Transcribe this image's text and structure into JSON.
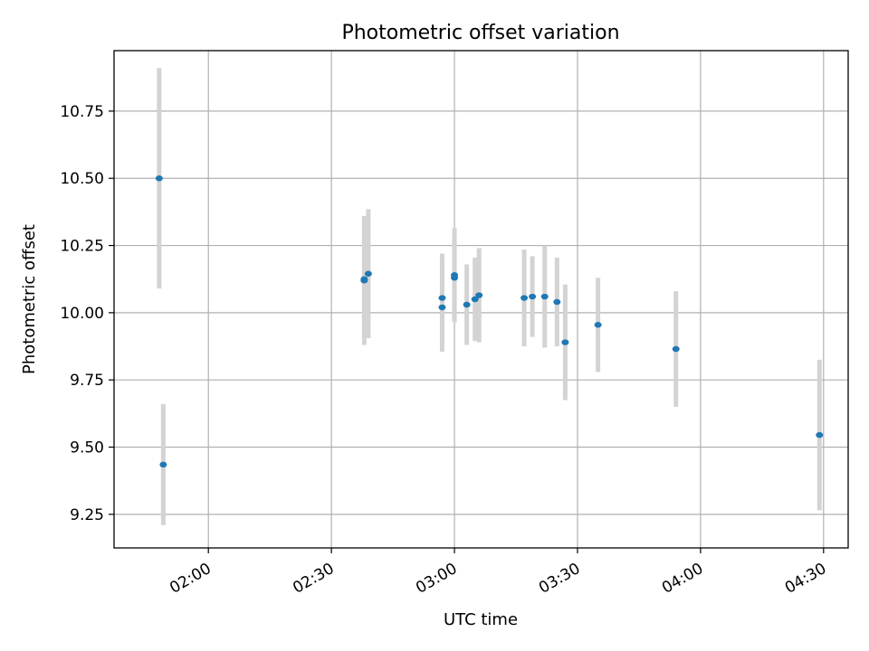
{
  "chart_data": {
    "type": "scatter",
    "title": "Photometric offset variation",
    "xlabel": "UTC time",
    "ylabel": "Photometric offset",
    "x_tick_labels": [
      "02:00",
      "02:30",
      "03:00",
      "03:30",
      "04:00",
      "04:30"
    ],
    "y_tick_labels": [
      "9.25",
      "9.50",
      "9.75",
      "10.00",
      "10.25",
      "10.50",
      "10.75"
    ],
    "xlim": [
      "01:37",
      "04:36"
    ],
    "ylim": [
      9.125,
      10.975
    ],
    "grid": true,
    "legend": "none",
    "point_color": "#1f77b4",
    "errorbar_color": "#d3d3d3",
    "points": [
      {
        "x": "01:48",
        "y": 10.5,
        "yerr": 0.41
      },
      {
        "x": "01:49",
        "y": 9.435,
        "yerr": 0.225
      },
      {
        "x": "02:38",
        "y": 10.12,
        "yerr": 0.24
      },
      {
        "x": "02:38",
        "y": 10.125,
        "yerr": 0.22
      },
      {
        "x": "02:39",
        "y": 10.145,
        "yerr": 0.24
      },
      {
        "x": "02:57",
        "y": 10.02,
        "yerr": 0.165
      },
      {
        "x": "02:57",
        "y": 10.055,
        "yerr": 0.165
      },
      {
        "x": "03:00",
        "y": 10.13,
        "yerr": 0.165
      },
      {
        "x": "03:00",
        "y": 10.14,
        "yerr": 0.175
      },
      {
        "x": "03:03",
        "y": 10.03,
        "yerr": 0.15
      },
      {
        "x": "03:05",
        "y": 10.05,
        "yerr": 0.155
      },
      {
        "x": "03:06",
        "y": 10.065,
        "yerr": 0.175
      },
      {
        "x": "03:17",
        "y": 10.055,
        "yerr": 0.18
      },
      {
        "x": "03:19",
        "y": 10.06,
        "yerr": 0.15
      },
      {
        "x": "03:22",
        "y": 10.06,
        "yerr": 0.19
      },
      {
        "x": "03:25",
        "y": 10.04,
        "yerr": 0.165
      },
      {
        "x": "03:27",
        "y": 9.89,
        "yerr": 0.215
      },
      {
        "x": "03:35",
        "y": 9.955,
        "yerr": 0.175
      },
      {
        "x": "03:54",
        "y": 9.865,
        "yerr": 0.215
      },
      {
        "x": "04:29",
        "y": 9.545,
        "yerr": 0.28
      }
    ]
  }
}
